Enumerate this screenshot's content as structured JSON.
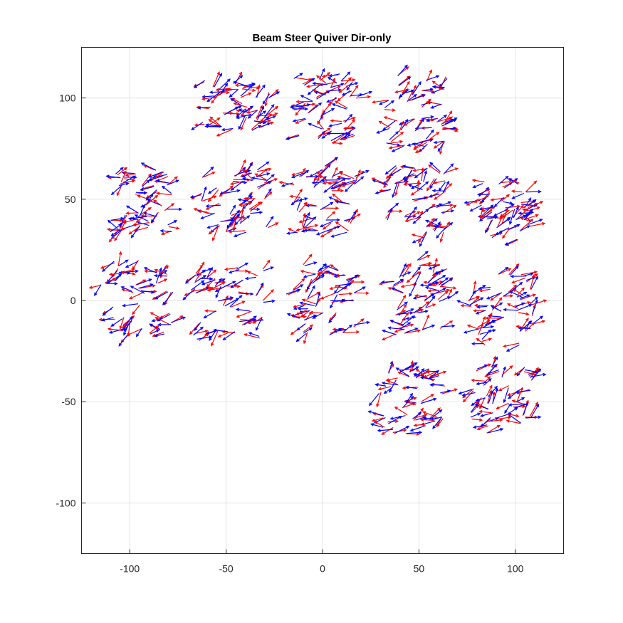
{
  "chart_data": {
    "type": "quiver",
    "title": "Beam Steer Quiver Dir-only",
    "xlabel": "",
    "ylabel": "",
    "xlim": [
      -125,
      125
    ],
    "ylim": [
      -125,
      125
    ],
    "xticks": [
      -100,
      -50,
      0,
      50,
      100
    ],
    "yticks": [
      -100,
      -50,
      0,
      50,
      100
    ],
    "xtick_labels": [
      "-100",
      "-50",
      "0",
      "50",
      "100"
    ],
    "ytick_labels": [
      "-100",
      "-50",
      "0",
      "50",
      "100"
    ],
    "grid": true,
    "series": [
      {
        "color": "#ff0000",
        "arrow_length": 7
      },
      {
        "color": "#0000ff",
        "arrow_length": 7
      }
    ],
    "clusters": [
      {
        "x_range": [
          -63,
          -27
        ],
        "y_range": [
          83,
          108
        ]
      },
      {
        "x_range": [
          -15,
          18
        ],
        "y_range": [
          77,
          113
        ]
      },
      {
        "x_range": [
          32,
          65
        ],
        "y_range": [
          75,
          112
        ]
      },
      {
        "x_range": [
          -110,
          -78
        ],
        "y_range": [
          34,
          66
        ]
      },
      {
        "x_range": [
          -63,
          -28
        ],
        "y_range": [
          33,
          65
        ]
      },
      {
        "x_range": [
          -15,
          18
        ],
        "y_range": [
          33,
          66
        ]
      },
      {
        "x_range": [
          32,
          65
        ],
        "y_range": [
          31,
          66
        ]
      },
      {
        "x_range": [
          78,
          110
        ],
        "y_range": [
          30,
          60
        ]
      },
      {
        "x_range": [
          -115,
          -78
        ],
        "y_range": [
          -18,
          20
        ]
      },
      {
        "x_range": [
          -68,
          -30
        ],
        "y_range": [
          -20,
          18
        ]
      },
      {
        "x_range": [
          -18,
          18
        ],
        "y_range": [
          -17,
          20
        ]
      },
      {
        "x_range": [
          32,
          65
        ],
        "y_range": [
          -17,
          20
        ]
      },
      {
        "x_range": [
          75,
          110
        ],
        "y_range": [
          -22,
          15
        ]
      },
      {
        "x_range": [
          30,
          64
        ],
        "y_range": [
          -66,
          -33
        ]
      },
      {
        "x_range": [
          77,
          110
        ],
        "y_range": [
          -66,
          -33
        ]
      }
    ],
    "arrows_per_cluster": 40
  }
}
